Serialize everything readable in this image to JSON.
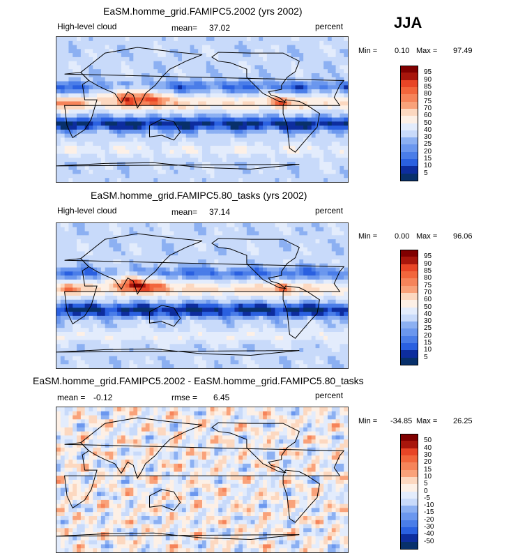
{
  "season_label": "JJA",
  "colors": {
    "levels_abs": [
      "#08306b",
      "#0d2d9e",
      "#1845cc",
      "#2a60e0",
      "#4a7de8",
      "#6b97ee",
      "#8cb0f2",
      "#aac6f6",
      "#c8dafa",
      "#e3ecfc",
      "#fdf0e6",
      "#fcd8c0",
      "#fbbf9d",
      "#f9a27a",
      "#f6845a",
      "#f2663c",
      "#e84526",
      "#cf2a16",
      "#a8160c",
      "#800000"
    ],
    "levels_diff": [
      "#08306b",
      "#0d2d9e",
      "#1845cc",
      "#2a60e0",
      "#4a7de8",
      "#6b97ee",
      "#8cb0f2",
      "#aac6f6",
      "#c8dafa",
      "#e3ecfc",
      "#fdf0e6",
      "#fcd8c0",
      "#fbbf9d",
      "#f9a27a",
      "#f6845a",
      "#f2663c",
      "#e84526",
      "#cf2a16",
      "#a8160c",
      "#800000"
    ]
  },
  "chart_data": [
    {
      "type": "heatmap",
      "title": "EaSM.homme_grid.FAMIPC5.2002 (yrs 2002)",
      "variable_label": "High-level cloud",
      "stat1_label": "mean=",
      "stat1_value": "37.02",
      "units": "percent",
      "min_label": "Min =",
      "min_value": "0.10",
      "max_label": "Max =",
      "max_value": "97.49",
      "colorbar_labels": [
        "95",
        "90",
        "85",
        "80",
        "75",
        "70",
        "60",
        "50",
        "40",
        "30",
        "25",
        "20",
        "15",
        "10",
        "5"
      ]
    },
    {
      "type": "heatmap",
      "title": "EaSM.homme_grid.FAMIPC5.80_tasks (yrs 2002)",
      "variable_label": "High-level cloud",
      "stat1_label": "mean=",
      "stat1_value": "37.14",
      "units": "percent",
      "min_label": "Min =",
      "min_value": "0.00",
      "max_label": "Max =",
      "max_value": "96.06",
      "colorbar_labels": [
        "95",
        "90",
        "85",
        "80",
        "75",
        "70",
        "60",
        "50",
        "40",
        "30",
        "25",
        "20",
        "15",
        "10",
        "5"
      ]
    },
    {
      "type": "heatmap",
      "title": "EaSM.homme_grid.FAMIPC5.2002 - EaSM.homme_grid.FAMIPC5.80_tasks",
      "stat1_label": "mean =",
      "stat1_value": "-0.12",
      "stat2_label": "rmse =",
      "stat2_value": "6.45",
      "units": "percent",
      "min_label": "Min =",
      "min_value": "-34.85",
      "max_label": "Max =",
      "max_value": "26.25",
      "colorbar_labels": [
        "50",
        "40",
        "30",
        "20",
        "15",
        "10",
        "5",
        "0",
        "-5",
        "-10",
        "-15",
        "-20",
        "-30",
        "-40",
        "-50"
      ]
    }
  ]
}
